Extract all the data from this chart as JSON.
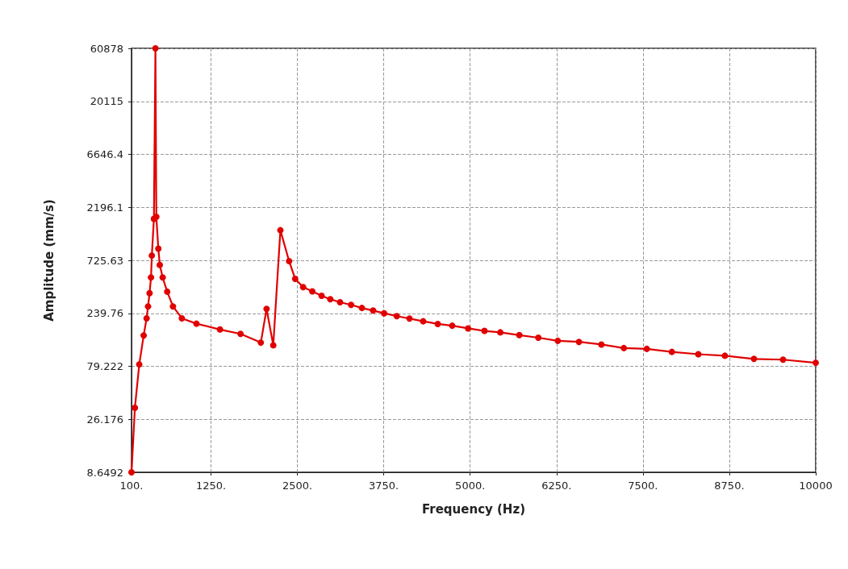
{
  "chart_data": {
    "type": "line",
    "xlabel": "Frequency (Hz)",
    "ylabel": "Amplitude (mm/s)",
    "log": "y",
    "grid": true,
    "marker": "circle",
    "line_style": "solid",
    "xlim": [
      100,
      10000
    ],
    "xticks": [
      {
        "value": 100,
        "label": "100."
      },
      {
        "value": 1250,
        "label": "1250."
      },
      {
        "value": 2500,
        "label": "2500."
      },
      {
        "value": 3750,
        "label": "3750."
      },
      {
        "value": 5000,
        "label": "5000."
      },
      {
        "value": 6250,
        "label": "6250."
      },
      {
        "value": 7500,
        "label": "7500."
      },
      {
        "value": 8750,
        "label": "8750."
      },
      10000
    ],
    "ylim": [
      8.6492,
      60878
    ],
    "yticks": [
      8.6492,
      26.176,
      79.222,
      239.76,
      725.63,
      2196.1,
      6646.4,
      20115,
      60878
    ],
    "series": [
      {
        "color": "#e00000",
        "x": [
          100,
          149,
          212,
          276,
          318,
          339,
          361,
          382,
          394,
          424,
          446,
          459,
          488,
          509,
          551,
          616,
          700,
          828,
          1040,
          1380,
          1677,
          1971,
          2054,
          2151,
          2254,
          2380,
          2468,
          2583,
          2716,
          2850,
          2976,
          3117,
          3277,
          3434,
          3595,
          3755,
          3938,
          4122,
          4320,
          4531,
          4740,
          4970,
          5207,
          5436,
          5711,
          5986,
          6268,
          6574,
          6898,
          7224,
          7556,
          7918,
          8301,
          8686,
          9106,
          9527,
          10000
        ],
        "values": [
          8.65,
          33.3,
          82.5,
          151,
          216,
          277,
          365,
          507,
          801,
          1726,
          60878,
          1800,
          927,
          658,
          507,
          377,
          277,
          216,
          193,
          171,
          156,
          130,
          263,
          123,
          1362,
          714,
          493,
          414,
          379,
          346,
          322,
          302,
          286,
          268,
          254,
          240,
          226,
          215,
          203,
          192,
          185,
          175,
          166,
          161,
          152,
          144,
          135,
          132,
          125,
          116,
          114,
          107,
          102,
          98.8,
          92.5,
          91,
          85.3
        ]
      }
    ]
  }
}
